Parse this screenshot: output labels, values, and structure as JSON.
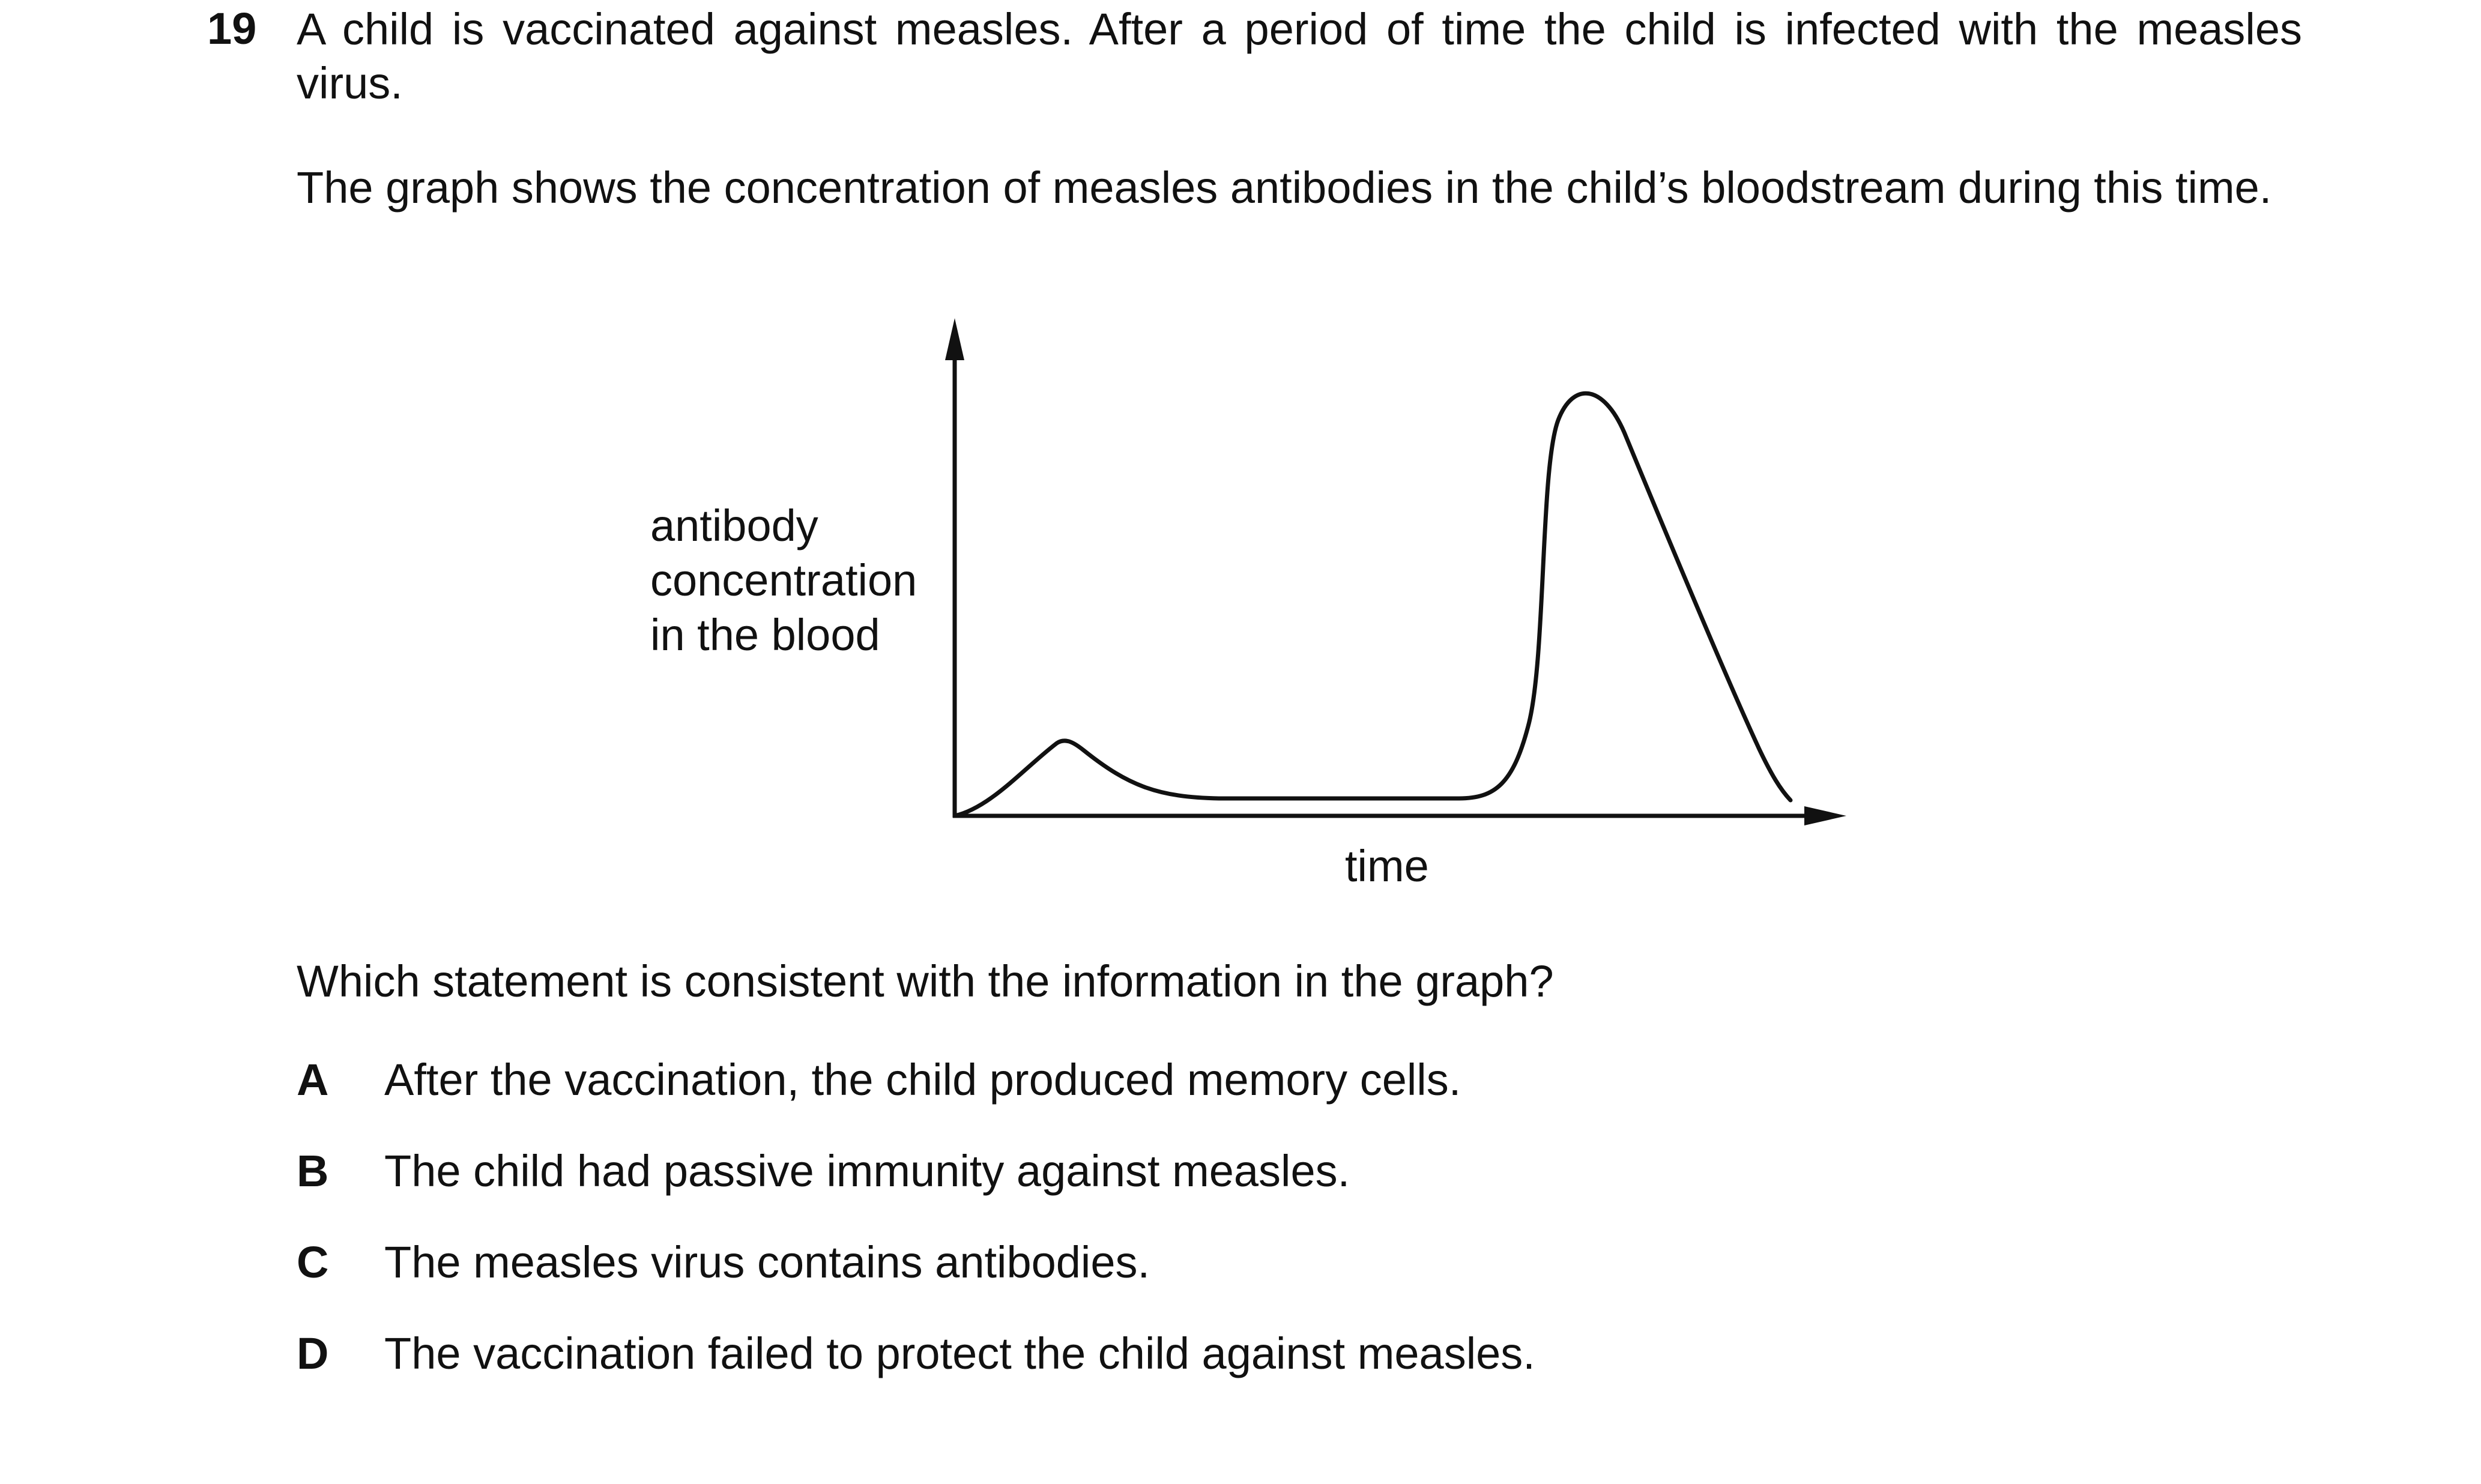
{
  "question": {
    "number": "19",
    "intro": "A child is vaccinated against measles. After a period of time the child is infected with the measles virus.",
    "graph_description": "The graph shows the concentration of measles antibodies in the child’s bloodstream during this time.",
    "prompt": "Which statement is consistent with the information in the graph?",
    "options": [
      {
        "letter": "A",
        "text": "After the vaccination, the child produced memory cells."
      },
      {
        "letter": "B",
        "text": "The child had passive immunity against measles."
      },
      {
        "letter": "C",
        "text": "The measles virus contains antibodies."
      },
      {
        "letter": "D",
        "text": "The vaccination failed to protect the child against measles."
      }
    ]
  },
  "graph": {
    "y_axis_label_lines": [
      "antibody",
      "concentration",
      "in the blood"
    ],
    "x_axis_label": "time",
    "line_color": "#111111"
  }
}
